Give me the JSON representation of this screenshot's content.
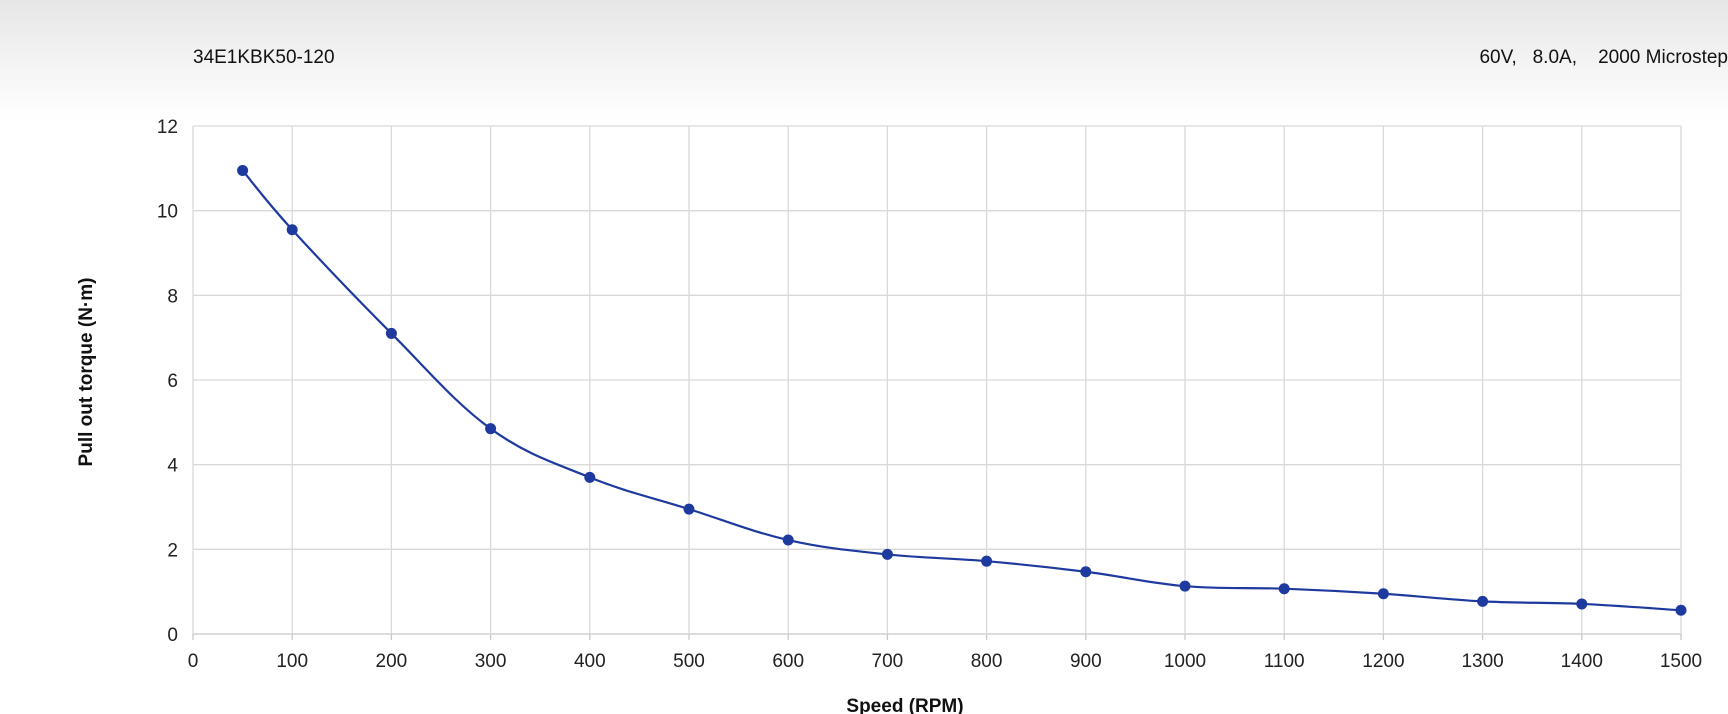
{
  "header": {
    "model": "34E1KBK50-120",
    "spec": "60V,   8.0A,    2000 Microstep"
  },
  "colors": {
    "series": "#1f3a9e",
    "grid": "#d9d9d9"
  },
  "chart_data": {
    "type": "line",
    "title": "",
    "xlabel": "Speed (RPM)",
    "ylabel": "Pull out torque (N·m)",
    "xlim": [
      0,
      1500
    ],
    "ylim": [
      0,
      12
    ],
    "x_ticks": [
      0,
      100,
      200,
      300,
      400,
      500,
      600,
      700,
      800,
      900,
      1000,
      1100,
      1200,
      1300,
      1400,
      1500
    ],
    "y_ticks": [
      0,
      2,
      4,
      6,
      8,
      10,
      12
    ],
    "grid": true,
    "smooth": true,
    "series": [
      {
        "x": [
          50,
          100,
          200,
          300,
          400,
          500,
          600,
          700,
          800,
          900,
          1000,
          1100,
          1200,
          1300,
          1400,
          1500
        ],
        "y": [
          10.95,
          9.55,
          7.1,
          4.85,
          3.7,
          2.95,
          2.22,
          1.88,
          1.72,
          1.47,
          1.13,
          1.07,
          0.95,
          0.77,
          0.71,
          0.56
        ]
      }
    ]
  }
}
